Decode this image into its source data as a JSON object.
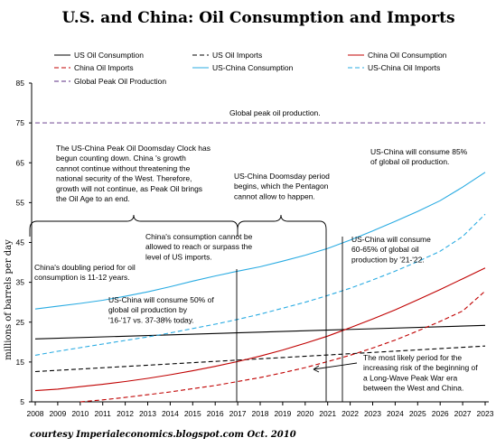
{
  "chart_data": {
    "type": "line",
    "title": "U.S. and China: Oil Consumption and Imports",
    "ylabel": "millions of barrels per day",
    "xlabel": "",
    "y_ticks": [
      5,
      15,
      25,
      35,
      45,
      55,
      65,
      75,
      85
    ],
    "ylim": [
      5,
      85
    ],
    "x": [
      "2008",
      "2009",
      "2010",
      "2011",
      "2012",
      "2013",
      "2014",
      "2015",
      "2016",
      "2017",
      "2018",
      "2019",
      "2020",
      "2021",
      "2022",
      "2023",
      "2024",
      "2025",
      "2026",
      "2027",
      "2023"
    ],
    "x_index_range": [
      0,
      20
    ],
    "legend_position": "top",
    "grid": false,
    "series": [
      {
        "name": "US Oil Consumption",
        "color": "#000000",
        "dash": "solid",
        "x": [
          0,
          20
        ],
        "values": [
          20.8,
          24.2
        ]
      },
      {
        "name": "US Oil Imports",
        "color": "#000000",
        "dash": "dashed",
        "x": [
          0,
          20
        ],
        "values": [
          12.6,
          19.0
        ]
      },
      {
        "name": "China Oil Consumption",
        "color": "#c00000",
        "dash": "solid",
        "x": [
          0,
          1,
          2,
          3,
          4,
          5,
          6,
          7,
          8,
          9,
          10,
          11,
          12,
          13,
          14,
          15,
          16,
          17,
          18,
          19,
          20
        ],
        "values": [
          7.8,
          8.2,
          8.8,
          9.4,
          10.1,
          10.9,
          11.8,
          12.8,
          13.9,
          15.1,
          16.5,
          18.0,
          19.7,
          21.5,
          23.6,
          25.8,
          28.1,
          30.6,
          33.2,
          35.9,
          38.6
        ]
      },
      {
        "name": "China Oil Imports",
        "color": "#c00000",
        "dash": "dashed",
        "x": [
          2,
          3,
          4,
          5,
          6,
          7,
          8,
          9,
          10,
          11,
          12,
          13,
          14,
          15,
          16,
          17,
          18,
          19,
          20
        ],
        "values": [
          5.0,
          5.5,
          6.1,
          6.8,
          7.5,
          8.3,
          9.1,
          10.1,
          11.1,
          12.3,
          13.6,
          15.1,
          16.7,
          18.5,
          20.5,
          22.8,
          25.2,
          27.8,
          32.8
        ]
      },
      {
        "name": "US-China Consumption",
        "color": "#29abe2",
        "dash": "solid",
        "x": [
          0,
          1,
          2,
          3,
          4,
          5,
          6,
          7,
          8,
          9,
          10,
          11,
          12,
          13,
          14,
          15,
          16,
          17,
          18,
          19,
          20
        ],
        "values": [
          28.3,
          29.0,
          29.7,
          30.5,
          31.5,
          32.6,
          33.9,
          35.3,
          36.6,
          37.8,
          38.9,
          40.3,
          41.8,
          43.5,
          45.6,
          47.9,
          50.3,
          52.8,
          55.5,
          58.9,
          62.6
        ]
      },
      {
        "name": "US-China Oil Imports",
        "color": "#29abe2",
        "dash": "dashed",
        "x": [
          0,
          1,
          2,
          3,
          4,
          5,
          6,
          7,
          8,
          9,
          10,
          11,
          12,
          13,
          14,
          15,
          16,
          17,
          18,
          19,
          20
        ],
        "values": [
          16.7,
          17.7,
          18.6,
          19.5,
          20.4,
          21.3,
          22.3,
          23.4,
          24.5,
          25.7,
          27.0,
          28.5,
          30.0,
          31.7,
          33.5,
          35.6,
          37.8,
          40.2,
          42.8,
          46.5,
          52.1
        ]
      },
      {
        "name": "Global Peak Oil Production",
        "color": "#5b2c83",
        "dash": "dashed",
        "x": [
          0,
          20
        ],
        "values": [
          75,
          75
        ]
      }
    ],
    "annotations": {
      "peak_label": "Global peak oil production.",
      "doomsday_clock": [
        "The US-China  Peak Oil Doomsday Clock has",
        "begun  counting down.  China 's growth",
        "cannot continue without threatening  the",
        "national security of the West. Therefore,",
        "growth  will  not  continue, as Peak Oil brings",
        "the Oil Age  to an end."
      ],
      "pentagon": [
        "US-China Doomsday period",
        "begins, which the Pentagon",
        "cannot allow to happen."
      ],
      "will_85": [
        "US-China  will consume 85%",
        "of global oil production."
      ],
      "cannot_reach": [
        "China's consumption cannot be",
        "allowed to reach or surpass  the",
        "level of US imports."
      ],
      "will_60": [
        "US-China  will consume",
        "60-65% of global oil",
        "production by '21-'22."
      ],
      "doubling": [
        "China's doubling period for oil",
        "consumption is  11-12 years."
      ],
      "will_50": [
        "US-China  will consume 50% of",
        "global oil production by",
        "'16-'17 vs. 37-38% today."
      ],
      "war": [
        "The most likely period for the",
        "increasing risk of the beginning of",
        "a Long-Wave Peak War era",
        "between the West and China."
      ]
    },
    "credit": "courtesy Imperialeconomics.blogspot.com    Oct. 2010"
  }
}
